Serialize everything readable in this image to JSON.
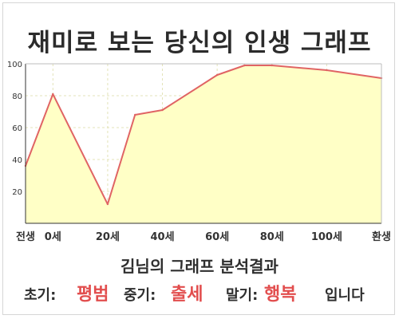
{
  "title": "재미로 보는 당신의 인생 그래프",
  "chart_data": {
    "type": "area",
    "title": "재미로 보는 당신의 인생 그래프",
    "xlabel": "",
    "ylabel": "",
    "categories": [
      "전생",
      "0세",
      "20세",
      "40세",
      "60세",
      "80세",
      "100세",
      "환생"
    ],
    "x": [
      -10,
      0,
      20,
      30,
      40,
      60,
      70,
      80,
      100,
      120
    ],
    "values": [
      36,
      81,
      12,
      68,
      71,
      93,
      99,
      99,
      96,
      91
    ],
    "yticks": [
      20,
      40,
      60,
      80,
      100
    ],
    "ylim": [
      0,
      100
    ],
    "grid": true,
    "line_color": "#e06464",
    "fill_color": "#ffffc6"
  },
  "summary": "김님의 그래프 분석결과",
  "results": {
    "early_label": "초기:",
    "early_value": "평범",
    "middle_label": "중기:",
    "middle_value": "출세",
    "late_label": "말기:",
    "late_value": "행복",
    "suffix": "입니다"
  },
  "colors": {
    "accent": "#e24e4e",
    "frame": "#d6d6d6"
  }
}
